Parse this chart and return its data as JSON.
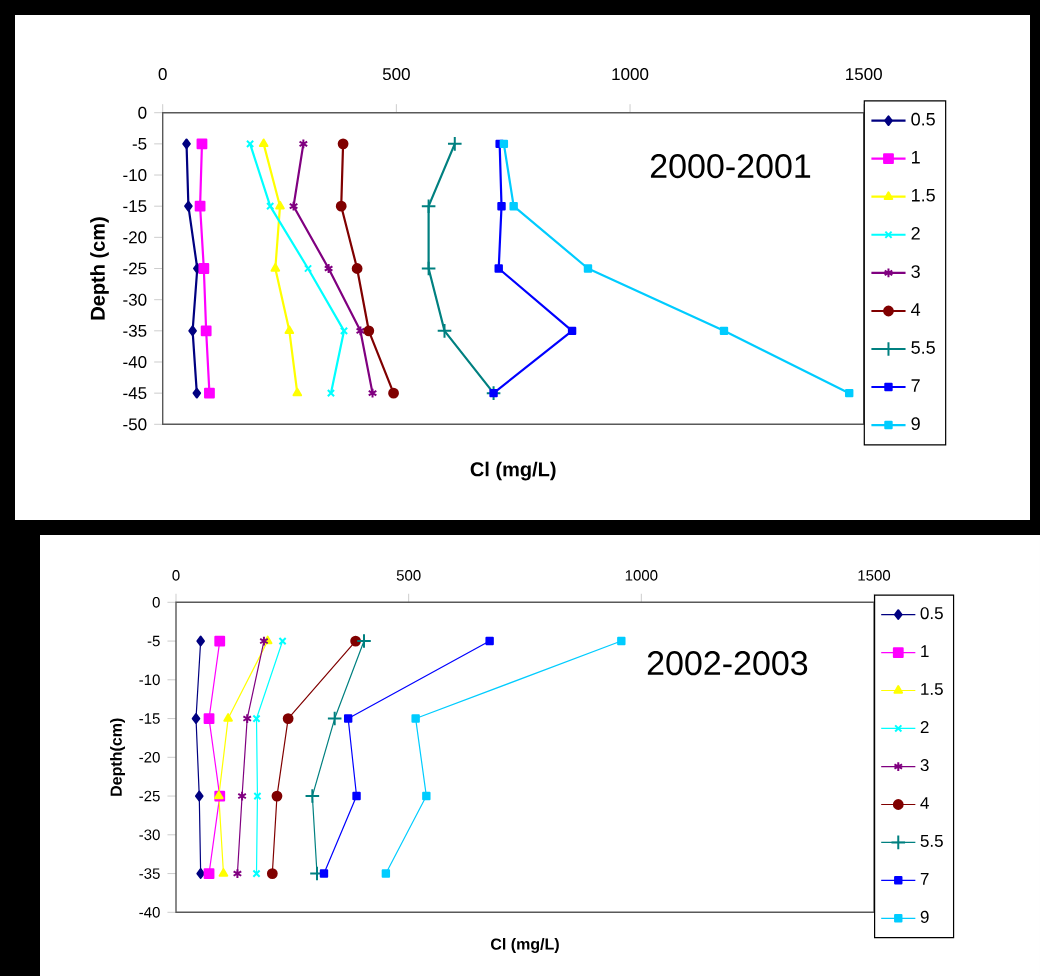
{
  "chart_data": [
    {
      "type": "line",
      "title": "2000-2001",
      "xlabel": "Cl (mg/L)",
      "ylabel": "Depth (cm)",
      "xlim": [
        0,
        1500
      ],
      "xticks": [
        0,
        500,
        1000,
        1500
      ],
      "ylim": [
        -50,
        0
      ],
      "yticks": [
        -50,
        -45,
        -40,
        -35,
        -30,
        -25,
        -20,
        -15,
        -10,
        -5,
        0
      ],
      "legend": "right",
      "series": [
        {
          "name": "0.5",
          "color": "#000080",
          "marker": "diamond",
          "x": [
            51,
            55,
            74,
            64,
            73
          ],
          "values": [
            -5,
            -15,
            -25,
            -35,
            -45
          ]
        },
        {
          "name": "1",
          "color": "#ff00ff",
          "marker": "square",
          "x": [
            84,
            80,
            88,
            93,
            100
          ],
          "values": [
            -5,
            -15,
            -25,
            -35,
            -45
          ]
        },
        {
          "name": "1.5",
          "color": "#ffff00",
          "marker": "triangle",
          "x": [
            216,
            251,
            241,
            271,
            288
          ],
          "values": [
            -5,
            -15,
            -25,
            -35,
            -45
          ]
        },
        {
          "name": "2",
          "color": "#00ffff",
          "marker": "cross",
          "x": [
            187,
            230,
            311,
            388,
            360
          ],
          "values": [
            -5,
            -15,
            -25,
            -35,
            -45
          ]
        },
        {
          "name": "3",
          "color": "#800080",
          "marker": "cross",
          "x": [
            301,
            280,
            355,
            423,
            449
          ],
          "values": [
            -5,
            -15,
            -25,
            -35,
            -45
          ]
        },
        {
          "name": "4",
          "color": "#800000",
          "marker": "circle",
          "x": [
            386,
            382,
            416,
            441,
            494
          ],
          "values": [
            -5,
            -15,
            -25,
            -35,
            -45
          ]
        },
        {
          "name": "5.5",
          "color": "#008080",
          "marker": "plus",
          "x": [
            625,
            569,
            569,
            603,
            708
          ],
          "values": [
            -5,
            -15,
            -25,
            -35,
            -45
          ]
        },
        {
          "name": "7",
          "color": "#0000ff",
          "marker": "square",
          "x": [
            721,
            725,
            719,
            876,
            708
          ],
          "values": [
            -5,
            -15,
            -25,
            -35,
            -45
          ]
        },
        {
          "name": "9",
          "color": "#00ccff",
          "marker": "square",
          "x": [
            730,
            751,
            910,
            1201,
            1469
          ],
          "values": [
            -5,
            -15,
            -25,
            -35,
            -45
          ]
        }
      ]
    },
    {
      "type": "line",
      "title": "2002-2003",
      "xlabel": "Cl (mg/L)",
      "ylabel": "Depth(cm)",
      "xlim": [
        0,
        1500
      ],
      "xticks": [
        0,
        500,
        1000,
        1500
      ],
      "ylim": [
        -40,
        0
      ],
      "yticks": [
        -40,
        -35,
        -30,
        -25,
        -20,
        -15,
        -10,
        -5,
        0
      ],
      "legend": "right",
      "series": [
        {
          "name": "0.5",
          "color": "#000080",
          "marker": "diamond",
          "x": [
            53,
            43,
            50,
            53
          ],
          "values": [
            -5,
            -15,
            -25,
            -35
          ]
        },
        {
          "name": "1",
          "color": "#ff00ff",
          "marker": "square",
          "x": [
            94,
            71,
            94,
            71
          ],
          "values": [
            -5,
            -15,
            -25,
            -35
          ]
        },
        {
          "name": "1.5",
          "color": "#ffff00",
          "marker": "triangle",
          "x": [
            197,
            112,
            92,
            102
          ],
          "values": [
            -5,
            -15,
            -25,
            -35
          ]
        },
        {
          "name": "2",
          "color": "#00ffff",
          "marker": "cross",
          "x": [
            229,
            173,
            175,
            173
          ],
          "values": [
            -5,
            -15,
            -25,
            -35
          ]
        },
        {
          "name": "3",
          "color": "#800080",
          "marker": "cross",
          "x": [
            189,
            153,
            142,
            132
          ],
          "values": [
            -5,
            -15,
            -25,
            -35
          ]
        },
        {
          "name": "4",
          "color": "#800000",
          "marker": "circle",
          "x": [
            386,
            241,
            217,
            207
          ],
          "values": [
            -5,
            -15,
            -25,
            -35
          ]
        },
        {
          "name": "5.5",
          "color": "#008080",
          "marker": "plus",
          "x": [
            404,
            341,
            293,
            303
          ],
          "values": [
            -5,
            -15,
            -25,
            -35
          ]
        },
        {
          "name": "7",
          "color": "#0000ff",
          "marker": "square",
          "x": [
            674,
            370,
            388,
            318
          ],
          "values": [
            -5,
            -15,
            -25,
            -35
          ]
        },
        {
          "name": "9",
          "color": "#00ccff",
          "marker": "square",
          "x": [
            957,
            515,
            538,
            451
          ],
          "values": [
            -5,
            -15,
            -25,
            -35
          ]
        }
      ]
    }
  ]
}
